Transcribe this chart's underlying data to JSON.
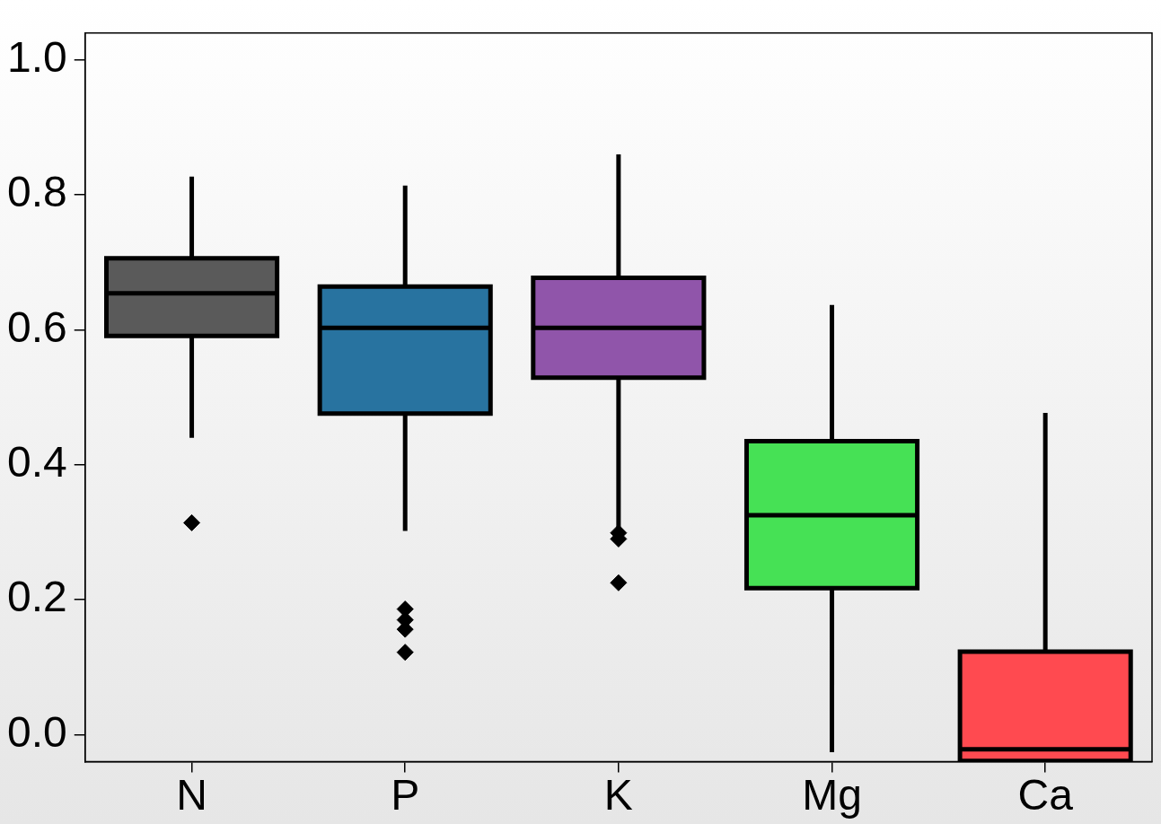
{
  "chart_data": {
    "type": "box",
    "categories": [
      "N",
      "P",
      "K",
      "Mg",
      "Ca"
    ],
    "colors": [
      "#5a5a5a",
      "#2873a0",
      "#9055aa",
      "#46e155",
      "#ff4a50"
    ],
    "boxes": [
      {
        "low": 0.44,
        "q1": 0.591,
        "median": 0.654,
        "q3": 0.706,
        "high": 0.827,
        "outliers": [
          0.314
        ]
      },
      {
        "low": 0.302,
        "q1": 0.476,
        "median": 0.603,
        "q3": 0.664,
        "high": 0.814,
        "outliers": [
          0.186,
          0.17,
          0.156,
          0.122
        ]
      },
      {
        "low": 0.3,
        "q1": 0.529,
        "median": 0.603,
        "q3": 0.677,
        "high": 0.86,
        "outliers": [
          0.299,
          0.29,
          0.225
        ]
      },
      {
        "low": -0.026,
        "q1": 0.217,
        "median": 0.325,
        "q3": 0.435,
        "high": 0.637
      },
      {
        "low": -0.039,
        "q1": -0.039,
        "median": -0.022,
        "q3": 0.123,
        "high": 0.477
      }
    ],
    "ylim": [
      -0.04,
      1.04
    ],
    "yticks": [
      {
        "value": 0,
        "label": "0.0"
      },
      {
        "value": 0.2,
        "label": "0.2"
      },
      {
        "value": 0.4,
        "label": "0.4"
      },
      {
        "value": 0.6,
        "label": "0.6"
      },
      {
        "value": 0.8,
        "label": "0.8"
      },
      {
        "value": 1,
        "label": "1.0"
      }
    ]
  }
}
